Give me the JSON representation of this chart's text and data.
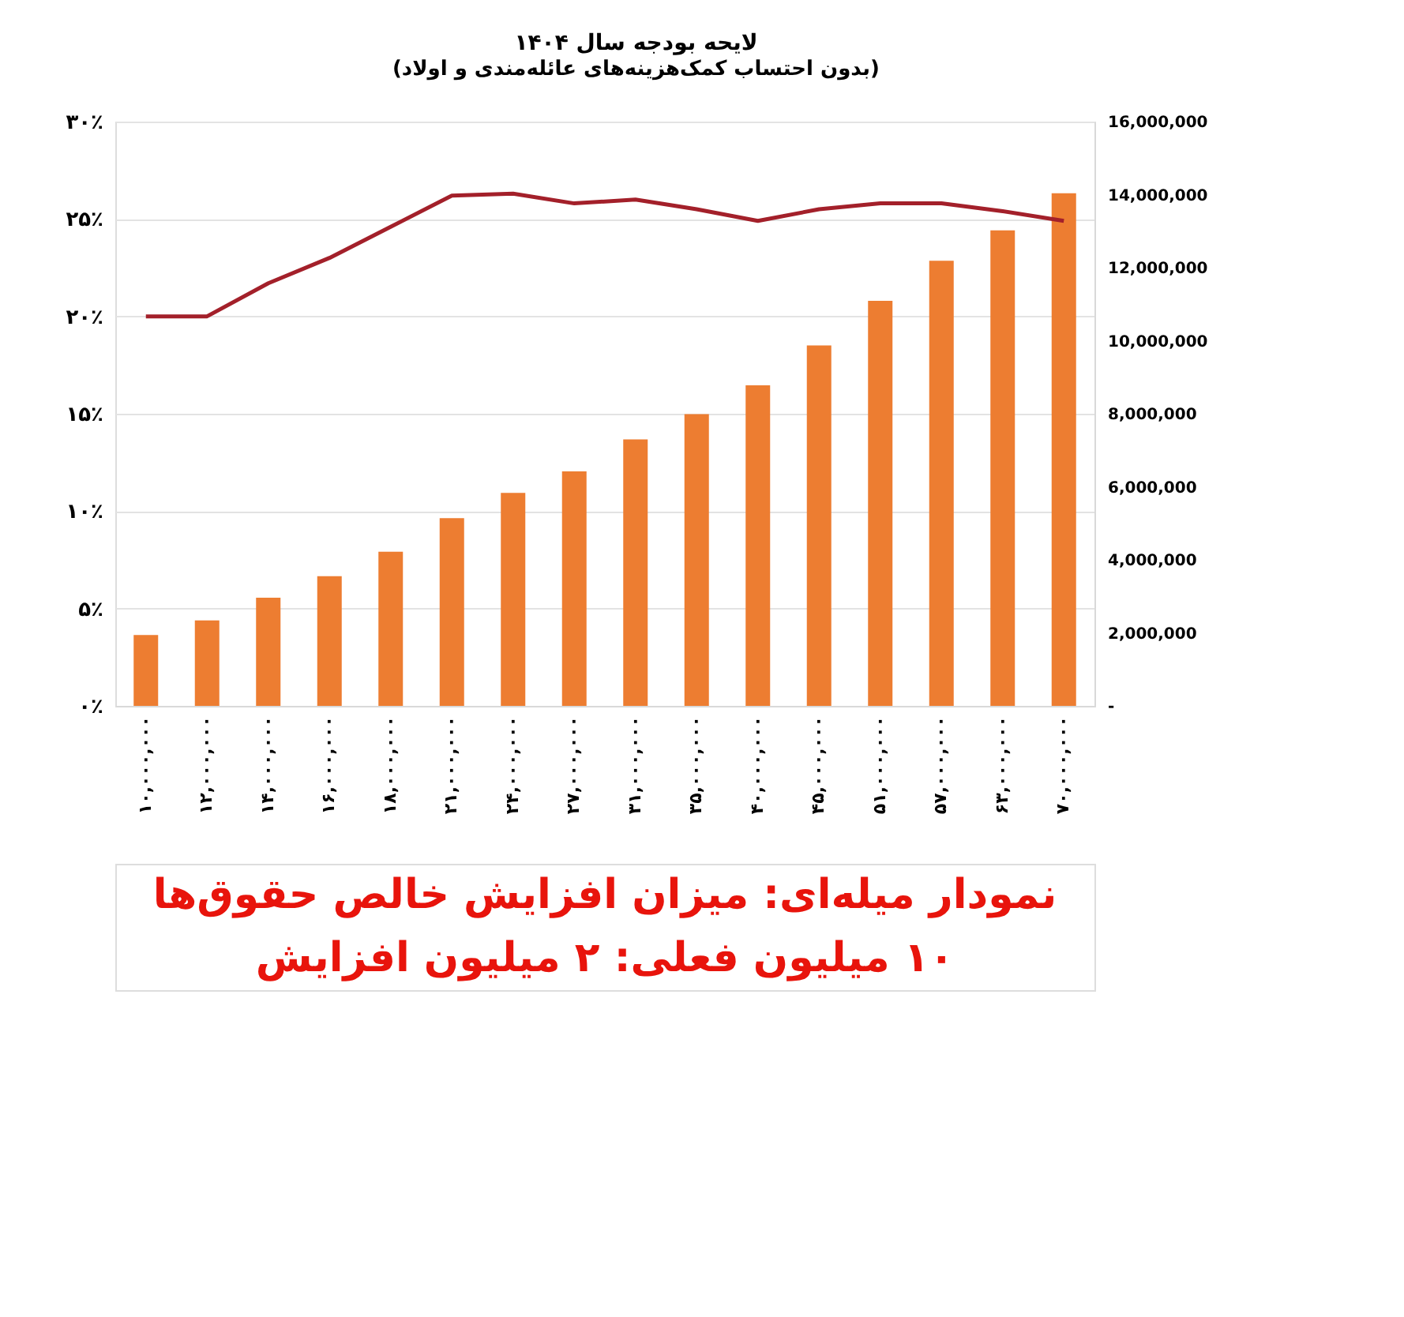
{
  "chart_data": {
    "type": "bar",
    "title": "لایحه بودجه سال ۱۴۰۴",
    "subtitle": "(بدون احتساب کمک‌هزینه‌های عائله‌مندی و اولاد)",
    "categories": [
      "۱۰,۰۰۰,۰۰۰",
      "۱۲,۰۰۰,۰۰۰",
      "۱۴,۰۰۰,۰۰۰",
      "۱۶,۰۰۰,۰۰۰",
      "۱۸,۰۰۰,۰۰۰",
      "۲۱,۰۰۰,۰۰۰",
      "۲۴,۰۰۰,۰۰۰",
      "۲۷,۰۰۰,۰۰۰",
      "۳۱,۰۰۰,۰۰۰",
      "۳۵,۰۰۰,۰۰۰",
      "۴۰,۰۰۰,۰۰۰",
      "۴۵,۰۰۰,۰۰۰",
      "۵۱,۰۰۰,۰۰۰",
      "۵۷,۰۰۰,۰۰۰",
      "۶۳,۰۰۰,۰۰۰",
      "۷۰,۰۰۰,۰۰۰"
    ],
    "series": [
      {
        "axis": "y2",
        "color": "#ed7d31",
        "values": [
          1940000,
          2340000,
          2960000,
          3550000,
          4220000,
          5140000,
          5830000,
          6420000,
          7300000,
          7990000,
          8780000,
          9870000,
          11090000,
          12190000,
          13020000,
          14040000
        ]
      },
      {
        "type": "line",
        "color": "#a3202a",
        "values": [
          20.0,
          20.0,
          21.7,
          23.0,
          24.6,
          26.2,
          26.3,
          25.8,
          26.0,
          25.5,
          24.9,
          25.5,
          25.8,
          25.8,
          25.4,
          24.9
        ]
      }
    ],
    "ylim": [
      0,
      30
    ],
    "yticks": [
      {
        "value": 0,
        "label": "۰٪"
      },
      {
        "value": 5,
        "label": "۵٪"
      },
      {
        "value": 10,
        "label": "۱۰٪"
      },
      {
        "value": 15,
        "label": "۱۵٪"
      },
      {
        "value": 20,
        "label": "۲۰٪"
      },
      {
        "value": 25,
        "label": "۲۵٪"
      },
      {
        "value": 30,
        "label": "۳۰٪"
      }
    ],
    "y2lim": [
      0,
      16000000
    ],
    "y2ticks": [
      {
        "value": 0,
        "label": "-"
      },
      {
        "value": 2000000,
        "label": "2,000,000"
      },
      {
        "value": 4000000,
        "label": "4,000,000"
      },
      {
        "value": 6000000,
        "label": "6,000,000"
      },
      {
        "value": 8000000,
        "label": "8,000,000"
      },
      {
        "value": 10000000,
        "label": "10,000,000"
      },
      {
        "value": 12000000,
        "label": "12,000,000"
      },
      {
        "value": 14000000,
        "label": "14,000,000"
      },
      {
        "value": 16000000,
        "label": "16,000,000"
      }
    ],
    "grid": "y",
    "line_style": "solid",
    "marker": "none",
    "annotations": [
      "نمودار میله‌ای: میزان افزایش خالص حقوق‌ها",
      "۱۰ میلیون فعلی: ۲ میلیون افزایش"
    ]
  }
}
